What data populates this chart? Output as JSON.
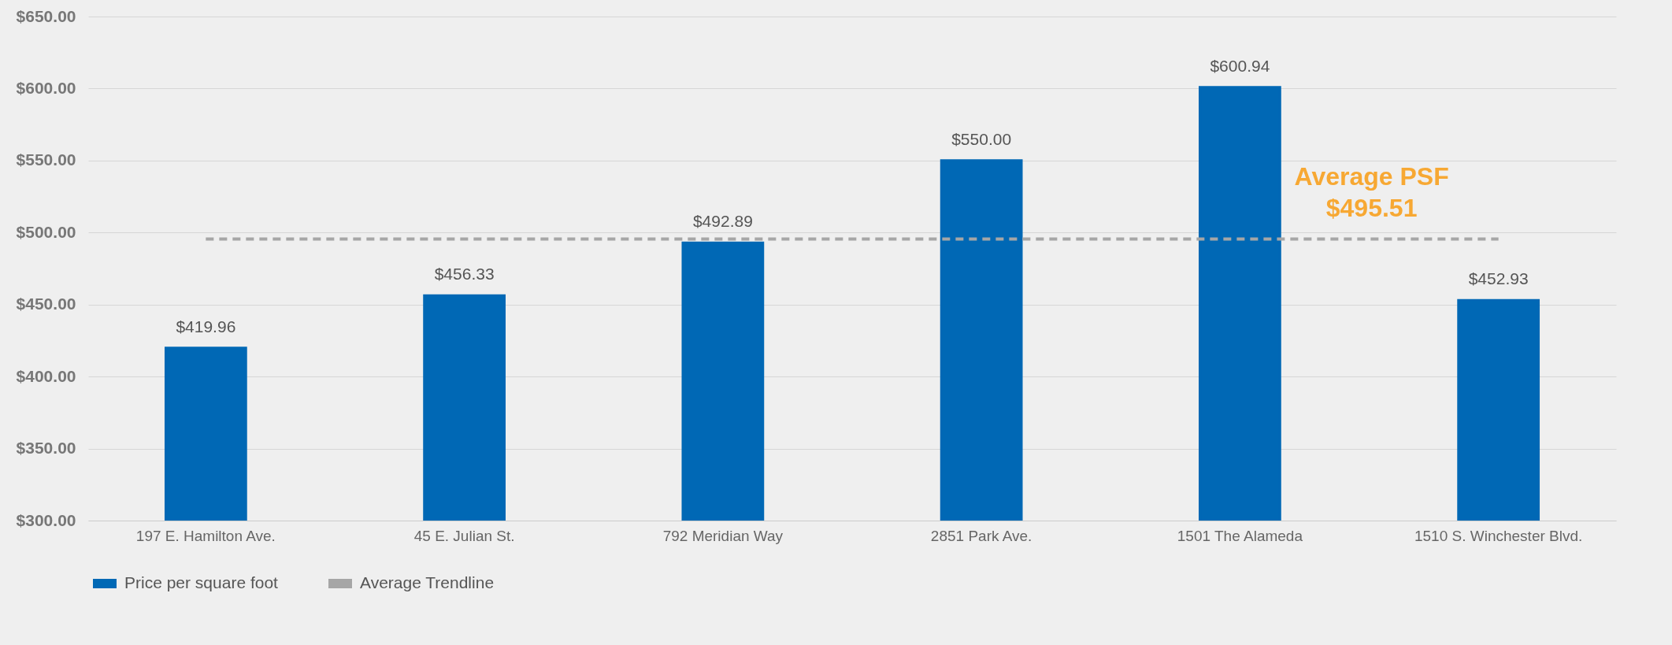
{
  "chart_data": {
    "type": "bar",
    "categories": [
      "197 E. Hamilton Ave.",
      "45 E. Julian St.",
      "792 Meridian Way",
      "2851 Park Ave.",
      "1501 The Alameda",
      "1510 S. Winchester Blvd."
    ],
    "series": [
      {
        "name": "Price per square foot",
        "color": "#0068b5",
        "values": [
          419.96,
          456.33,
          492.89,
          550.0,
          600.94,
          452.93
        ],
        "value_labels": [
          "$419.96",
          "$456.33",
          "$492.89",
          "$550.00",
          "$600.94",
          "$452.93"
        ]
      },
      {
        "name": "Average Trendline",
        "type": "line",
        "color": "#a6a6a6",
        "line_style": "dashed",
        "marker": "none",
        "values": [
          495.51,
          495.51,
          495.51,
          495.51,
          495.51,
          495.51
        ]
      }
    ],
    "ylim": [
      300,
      650
    ],
    "yticks": [
      {
        "value": 300,
        "label": "$300.00"
      },
      {
        "value": 350,
        "label": "$350.00"
      },
      {
        "value": 400,
        "label": "$400.00"
      },
      {
        "value": 450,
        "label": "$450.00"
      },
      {
        "value": 500,
        "label": "$500.00"
      },
      {
        "value": 550,
        "label": "$550.00"
      },
      {
        "value": 600,
        "label": "$600.00"
      },
      {
        "value": 650,
        "label": "$650.00"
      }
    ],
    "annotations": [
      "Average PSF",
      "$495.51"
    ],
    "grid": "y",
    "legend": "bottom"
  }
}
